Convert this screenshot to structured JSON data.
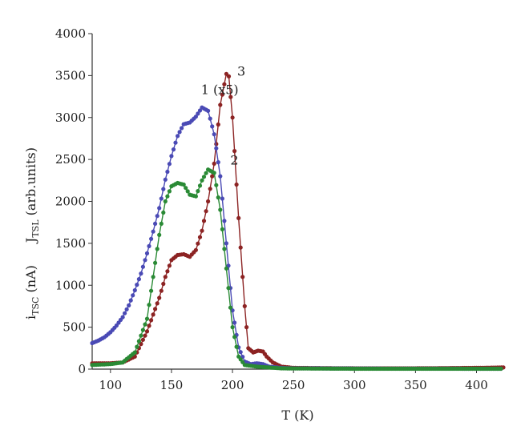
{
  "chart_data": {
    "type": "scatter",
    "title": "",
    "xlabel": "T (K)",
    "ylabel": {
      "part1_main": "i",
      "part1_sub": "TSC",
      "part1_tail": " (nA)",
      "part2_main": "J",
      "part2_sub": "TSL",
      "part2_tail": " (arb.units)"
    },
    "xlim": [
      85,
      422
    ],
    "ylim": [
      0,
      4000
    ],
    "xticks": [
      100,
      150,
      200,
      250,
      300,
      350,
      400
    ],
    "yticks": [
      0,
      500,
      1000,
      1500,
      2000,
      2500,
      3000,
      3500,
      4000
    ],
    "grid": false,
    "series": [
      {
        "name": "1 (x5)",
        "color": "#4a4ab5",
        "points": [
          [
            85,
            310
          ],
          [
            90,
            340
          ],
          [
            95,
            380
          ],
          [
            100,
            440
          ],
          [
            105,
            520
          ],
          [
            110,
            620
          ],
          [
            115,
            760
          ],
          [
            120,
            940
          ],
          [
            125,
            1140
          ],
          [
            130,
            1380
          ],
          [
            135,
            1640
          ],
          [
            140,
            1920
          ],
          [
            145,
            2260
          ],
          [
            150,
            2540
          ],
          [
            155,
            2780
          ],
          [
            160,
            2920
          ],
          [
            165,
            2940
          ],
          [
            170,
            3010
          ],
          [
            175,
            3120
          ],
          [
            180,
            3080
          ],
          [
            185,
            2800
          ],
          [
            190,
            2300
          ],
          [
            195,
            1500
          ],
          [
            200,
            700
          ],
          [
            205,
            260
          ],
          [
            210,
            90
          ],
          [
            215,
            60
          ],
          [
            220,
            70
          ],
          [
            225,
            60
          ],
          [
            230,
            30
          ],
          [
            240,
            15
          ],
          [
            250,
            10
          ],
          [
            300,
            8
          ],
          [
            350,
            6
          ],
          [
            400,
            5
          ],
          [
            420,
            5
          ]
        ]
      },
      {
        "name": "2",
        "color": "#2a8a35",
        "points": [
          [
            85,
            50
          ],
          [
            100,
            60
          ],
          [
            110,
            80
          ],
          [
            120,
            200
          ],
          [
            130,
            600
          ],
          [
            135,
            1100
          ],
          [
            140,
            1600
          ],
          [
            145,
            2000
          ],
          [
            150,
            2180
          ],
          [
            155,
            2220
          ],
          [
            160,
            2200
          ],
          [
            165,
            2080
          ],
          [
            170,
            2060
          ],
          [
            175,
            2250
          ],
          [
            180,
            2380
          ],
          [
            185,
            2340
          ],
          [
            190,
            1900
          ],
          [
            195,
            1200
          ],
          [
            200,
            500
          ],
          [
            205,
            150
          ],
          [
            210,
            50
          ],
          [
            220,
            30
          ],
          [
            230,
            20
          ],
          [
            240,
            10
          ],
          [
            250,
            8
          ],
          [
            300,
            5
          ],
          [
            350,
            5
          ],
          [
            400,
            5
          ],
          [
            420,
            5
          ]
        ]
      },
      {
        "name": "3",
        "color": "#8c2323",
        "points": [
          [
            85,
            70
          ],
          [
            100,
            70
          ],
          [
            110,
            80
          ],
          [
            120,
            150
          ],
          [
            130,
            450
          ],
          [
            140,
            850
          ],
          [
            145,
            1100
          ],
          [
            150,
            1300
          ],
          [
            155,
            1360
          ],
          [
            160,
            1370
          ],
          [
            165,
            1340
          ],
          [
            170,
            1420
          ],
          [
            175,
            1650
          ],
          [
            180,
            2000
          ],
          [
            185,
            2450
          ],
          [
            190,
            3150
          ],
          [
            195,
            3520
          ],
          [
            197,
            3490
          ],
          [
            200,
            3000
          ],
          [
            205,
            1800
          ],
          [
            210,
            750
          ],
          [
            213,
            250
          ],
          [
            217,
            200
          ],
          [
            221,
            220
          ],
          [
            225,
            210
          ],
          [
            228,
            150
          ],
          [
            233,
            80
          ],
          [
            240,
            30
          ],
          [
            250,
            15
          ],
          [
            300,
            10
          ],
          [
            350,
            10
          ],
          [
            400,
            15
          ],
          [
            422,
            20
          ]
        ]
      }
    ],
    "annotations": [
      {
        "text": "1 (x5)",
        "series": "1 (x5)"
      },
      {
        "text": "2",
        "series": "2"
      },
      {
        "text": "3",
        "series": "3"
      }
    ]
  }
}
